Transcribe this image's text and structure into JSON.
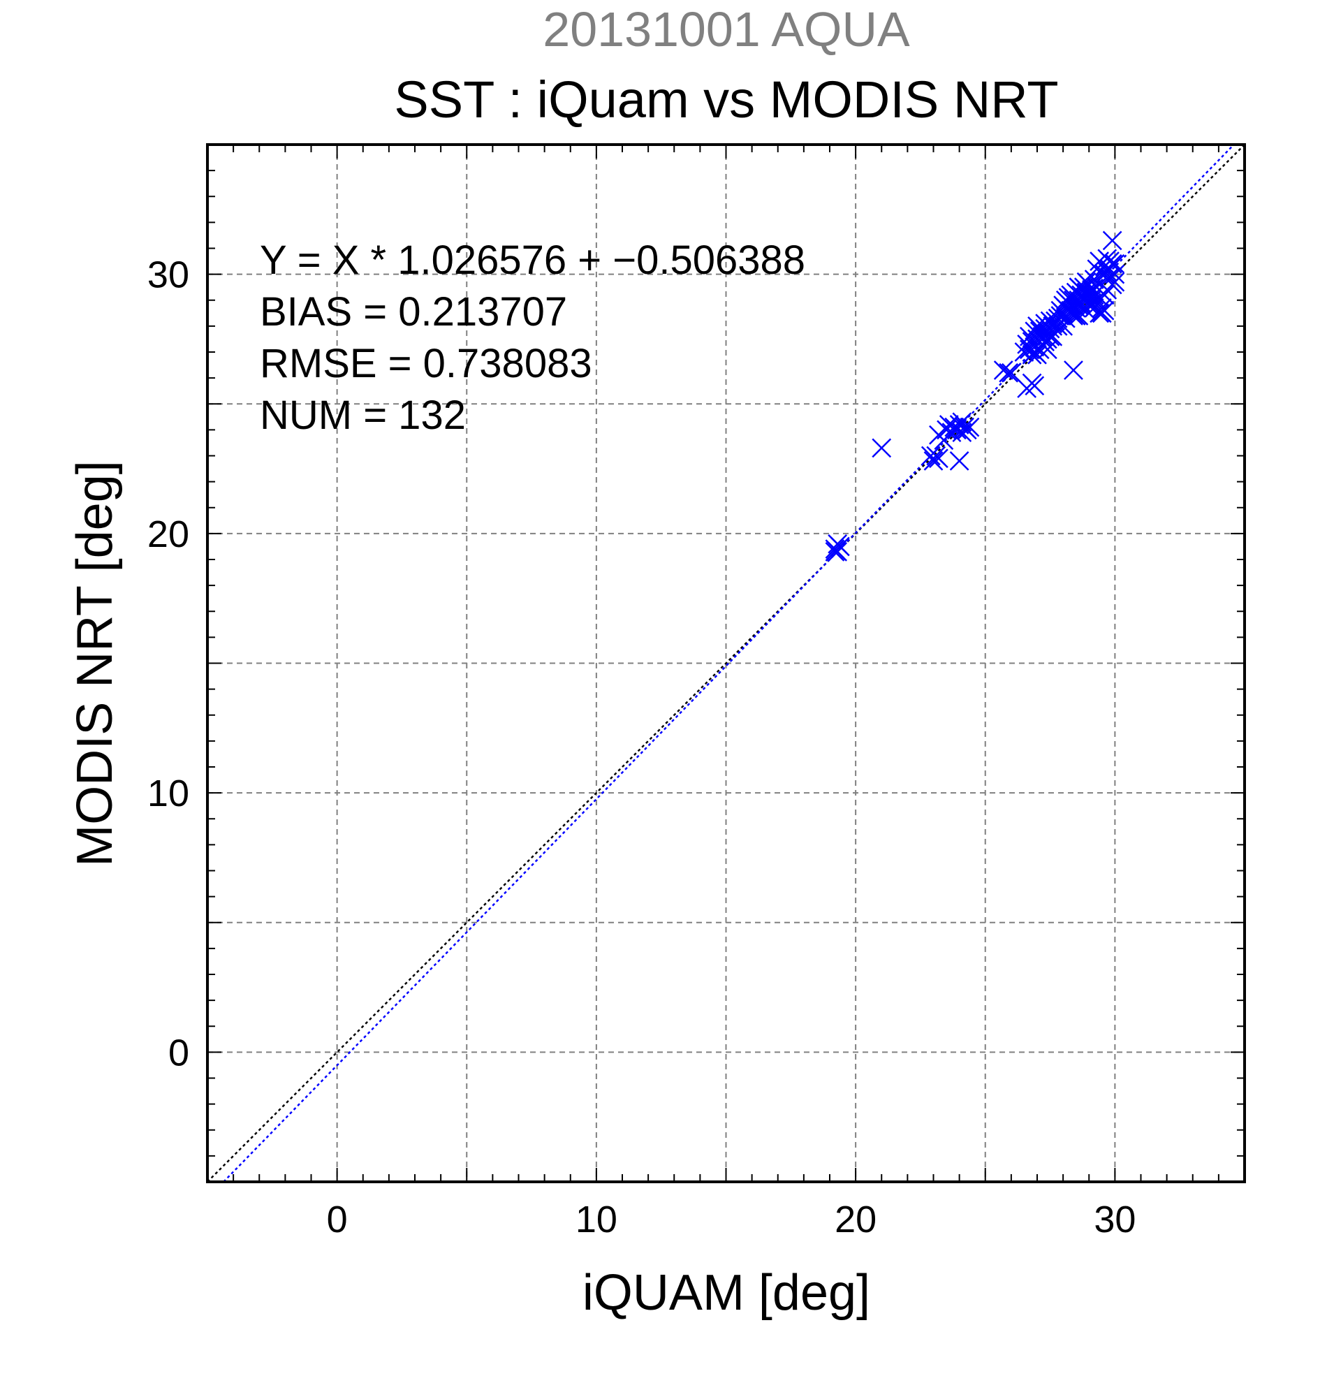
{
  "chart_data": {
    "type": "scatter",
    "date_label": "20131001 AQUA",
    "title": "SST : iQuam vs MODIS NRT",
    "xlabel": "iQUAM [deg]",
    "ylabel": "MODIS NRT [deg]",
    "xlim": [
      -5,
      35
    ],
    "ylim": [
      -5,
      35
    ],
    "major_ticks": [
      0,
      10,
      20,
      30
    ],
    "tick_labels": [
      "0",
      "10",
      "20",
      "30"
    ],
    "grid": true,
    "grid_step": 5,
    "minor_tick_step": 1,
    "stats": {
      "fit": "Y = X * 1.026576 + −0.506388",
      "bias": "BIAS = 0.213707",
      "rmse": "RMSE = 0.738083",
      "num": "NUM = 132"
    },
    "fit_line": {
      "slope": 1.026576,
      "intercept": -0.506388
    },
    "colors": {
      "points": "#0000ff",
      "fit_line": "#0000ff",
      "identity_line": "#000000",
      "grid": "#808080",
      "date": "#808080"
    },
    "series": [
      {
        "marker": "x",
        "points": [
          [
            19.2,
            19.4
          ],
          [
            19.3,
            19.3
          ],
          [
            19.4,
            19.5
          ],
          [
            19.3,
            19.6
          ],
          [
            19.2,
            19.3
          ],
          [
            21.0,
            23.3
          ],
          [
            22.9,
            23.0
          ],
          [
            23.0,
            22.8
          ],
          [
            23.1,
            23.0
          ],
          [
            23.2,
            22.9
          ],
          [
            23.2,
            23.8
          ],
          [
            23.4,
            23.6
          ],
          [
            23.5,
            24.0
          ],
          [
            23.6,
            24.2
          ],
          [
            23.7,
            23.9
          ],
          [
            23.8,
            24.1
          ],
          [
            23.9,
            24.0
          ],
          [
            24.0,
            22.8
          ],
          [
            24.0,
            24.2
          ],
          [
            24.1,
            24.3
          ],
          [
            24.1,
            23.9
          ],
          [
            24.2,
            24.1
          ],
          [
            24.3,
            24.0
          ],
          [
            24.4,
            24.1
          ],
          [
            25.7,
            26.3
          ],
          [
            25.9,
            26.2
          ],
          [
            26.0,
            26.2
          ],
          [
            26.6,
            25.6
          ],
          [
            26.8,
            25.8
          ],
          [
            26.9,
            25.7
          ],
          [
            26.5,
            27.0
          ],
          [
            26.6,
            27.3
          ],
          [
            26.7,
            27.1
          ],
          [
            26.7,
            27.6
          ],
          [
            26.8,
            26.9
          ],
          [
            26.9,
            27.2
          ],
          [
            26.9,
            27.8
          ],
          [
            27.0,
            27.5
          ],
          [
            27.0,
            28.0
          ],
          [
            27.1,
            27.1
          ],
          [
            27.1,
            27.8
          ],
          [
            27.2,
            27.6
          ],
          [
            27.2,
            27.3
          ],
          [
            27.3,
            27.9
          ],
          [
            27.3,
            28.1
          ],
          [
            27.4,
            27.5
          ],
          [
            27.4,
            27.7
          ],
          [
            27.5,
            27.9
          ],
          [
            27.5,
            28.2
          ],
          [
            27.6,
            27.6
          ],
          [
            27.6,
            28.0
          ],
          [
            27.0,
            26.9
          ],
          [
            27.2,
            27.3
          ],
          [
            27.4,
            27.1
          ],
          [
            26.8,
            27.4
          ],
          [
            27.7,
            28.2
          ],
          [
            27.8,
            28.3
          ],
          [
            27.9,
            28.4
          ],
          [
            28.0,
            28.5
          ],
          [
            28.0,
            28.0
          ],
          [
            28.1,
            28.7
          ],
          [
            28.1,
            29.0
          ],
          [
            28.2,
            28.6
          ],
          [
            28.2,
            29.1
          ],
          [
            28.3,
            28.8
          ],
          [
            28.3,
            29.2
          ],
          [
            28.4,
            28.5
          ],
          [
            28.4,
            29.0
          ],
          [
            28.4,
            26.3
          ],
          [
            28.5,
            28.7
          ],
          [
            28.5,
            29.3
          ],
          [
            28.6,
            29.0
          ],
          [
            28.6,
            28.4
          ],
          [
            28.6,
            29.5
          ],
          [
            28.7,
            28.9
          ],
          [
            28.7,
            29.4
          ],
          [
            28.8,
            29.1
          ],
          [
            28.8,
            28.7
          ],
          [
            28.9,
            29.3
          ],
          [
            28.9,
            29.0
          ],
          [
            29.0,
            29.2
          ],
          [
            29.0,
            28.8
          ],
          [
            29.1,
            29.4
          ],
          [
            29.1,
            29.0
          ],
          [
            29.2,
            29.2
          ],
          [
            29.2,
            28.7
          ],
          [
            29.3,
            29.5
          ],
          [
            29.3,
            30.2
          ],
          [
            29.4,
            28.5
          ],
          [
            29.4,
            29.1
          ],
          [
            29.4,
            30.5
          ],
          [
            29.5,
            28.5
          ],
          [
            29.5,
            28.7
          ],
          [
            29.5,
            30.0
          ],
          [
            29.6,
            30.3
          ],
          [
            29.6,
            29.2
          ],
          [
            29.6,
            28.6
          ],
          [
            29.7,
            30.1
          ],
          [
            29.7,
            30.6
          ],
          [
            29.7,
            29.4
          ],
          [
            29.8,
            30.2
          ],
          [
            29.8,
            30.5
          ],
          [
            29.8,
            29.9
          ],
          [
            29.9,
            31.3
          ],
          [
            29.9,
            30.4
          ],
          [
            29.9,
            29.6
          ],
          [
            30.0,
            30.0
          ],
          [
            30.0,
            29.7
          ],
          [
            30.0,
            30.4
          ],
          [
            28.2,
            28.9
          ],
          [
            28.4,
            28.4
          ],
          [
            28.9,
            28.6
          ],
          [
            29.1,
            28.9
          ],
          [
            27.8,
            28.0
          ],
          [
            27.9,
            28.6
          ],
          [
            28.6,
            28.8
          ],
          [
            28.7,
            29.2
          ],
          [
            28.8,
            29.5
          ],
          [
            29.0,
            29.6
          ],
          [
            29.2,
            29.8
          ],
          [
            27.3,
            27.4
          ],
          [
            27.5,
            27.6
          ],
          [
            27.1,
            27.9
          ],
          [
            26.9,
            27.0
          ],
          [
            28.3,
            28.6
          ],
          [
            28.5,
            28.4
          ],
          [
            28.0,
            28.8
          ],
          [
            29.3,
            29.0
          ],
          [
            28.9,
            29.7
          ],
          [
            27.6,
            28.1
          ],
          [
            28.1,
            28.3
          ],
          [
            29.6,
            30.0
          ]
        ]
      }
    ]
  }
}
